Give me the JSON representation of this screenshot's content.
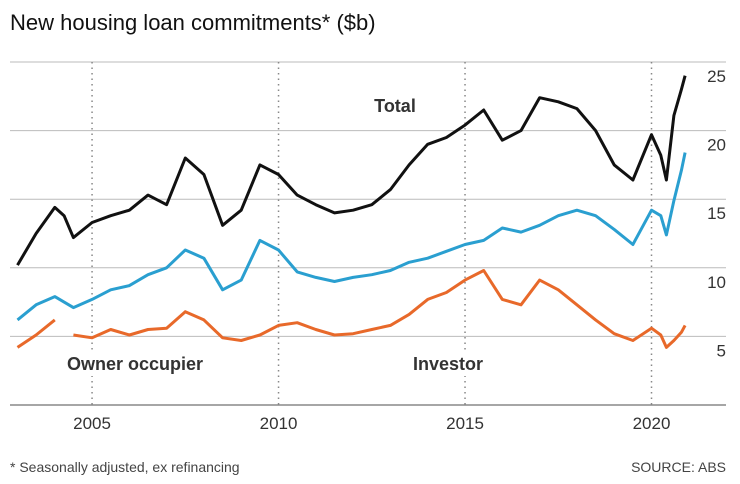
{
  "chart_data": {
    "type": "line",
    "title": "New housing loan commitments* ($b)",
    "footnote": "* Seasonally adjusted, ex refinancing",
    "source": "SOURCE: ABS",
    "x": [
      2003,
      2003.5,
      2004,
      2004.25,
      2004.5,
      2005,
      2005.5,
      2006,
      2006.5,
      2007,
      2007.5,
      2008,
      2008.5,
      2009,
      2009.5,
      2010,
      2010.5,
      2011,
      2011.5,
      2012,
      2012.5,
      2013,
      2013.5,
      2014,
      2014.5,
      2015,
      2015.5,
      2016,
      2016.5,
      2017,
      2017.5,
      2018,
      2018.5,
      2019,
      2019.5,
      2020,
      2020.25,
      2020.4,
      2020.6,
      2020.8,
      2020.9
    ],
    "series": [
      {
        "name": "Total",
        "color": "#111111",
        "values": [
          10.2,
          12.5,
          14.4,
          13.8,
          12.2,
          13.3,
          13.8,
          14.2,
          15.3,
          14.6,
          18.0,
          16.8,
          13.1,
          14.2,
          17.5,
          16.8,
          15.3,
          14.6,
          14.0,
          14.2,
          14.6,
          15.7,
          17.5,
          19.0,
          19.5,
          20.4,
          21.5,
          19.3,
          20.0,
          22.4,
          22.1,
          21.6,
          20.0,
          17.5,
          16.4,
          19.7,
          18.2,
          16.4,
          21.1,
          23.0,
          24.0
        ]
      },
      {
        "name": "Owner occupier",
        "color": "#2a9fd0",
        "values": [
          6.2,
          7.3,
          7.9,
          7.5,
          7.1,
          7.7,
          8.4,
          8.7,
          9.5,
          10.0,
          11.3,
          10.7,
          8.4,
          9.1,
          12.0,
          11.3,
          9.7,
          9.3,
          9.0,
          9.3,
          9.5,
          9.8,
          10.4,
          10.7,
          11.2,
          11.7,
          12.0,
          12.9,
          12.6,
          13.1,
          13.8,
          14.2,
          13.8,
          12.8,
          11.7,
          14.2,
          13.8,
          12.4,
          14.9,
          17.1,
          18.4
        ]
      },
      {
        "name": "Investor",
        "color": "#e8692a",
        "values": [
          4.2,
          5.1,
          6.2,
          null,
          5.1,
          4.9,
          5.5,
          5.1,
          5.5,
          5.6,
          6.8,
          6.2,
          4.9,
          4.7,
          5.1,
          5.8,
          6.0,
          5.5,
          5.1,
          5.2,
          5.5,
          5.8,
          6.6,
          7.7,
          8.2,
          9.1,
          9.8,
          7.7,
          7.3,
          9.1,
          8.4,
          7.3,
          6.2,
          5.2,
          4.7,
          5.6,
          5.1,
          4.2,
          4.7,
          5.3,
          5.8
        ]
      }
    ],
    "xlim": [
      2002.8,
      2021.3
    ],
    "xticks": [
      2005,
      2010,
      2015,
      2020
    ],
    "ylim": [
      0,
      25
    ],
    "yticks": [
      5,
      10,
      15,
      20,
      25
    ],
    "grid": true
  }
}
